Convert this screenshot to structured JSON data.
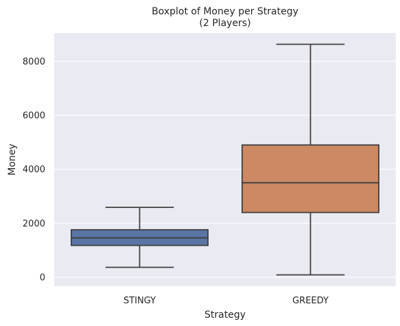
{
  "chart_data": {
    "type": "box",
    "title": [
      "Boxplot of Money per Strategy",
      "(2 Players)"
    ],
    "xlabel": "Strategy",
    "ylabel": "Money",
    "ylim": [
      -330,
      9050
    ],
    "yticks": [
      0,
      2000,
      4000,
      6000,
      8000
    ],
    "ytick_labels": [
      "0",
      "2000",
      "4000",
      "6000",
      "8000"
    ],
    "grid": true,
    "categories": [
      "STINGY",
      "GREEDY"
    ],
    "boxes": [
      {
        "category": "STINGY",
        "whisker_low": 370,
        "q1": 1180,
        "median": 1460,
        "q3": 1760,
        "whisker_high": 2590,
        "color": "#5975a4"
      },
      {
        "category": "GREEDY",
        "whisker_low": 90,
        "q1": 2400,
        "median": 3500,
        "q3": 4900,
        "whisker_high": 8630,
        "color": "#cc8963"
      }
    ],
    "colors": {
      "background": "#eaeaf2",
      "grid": "#ffffff",
      "lines": "#3f3f3f",
      "text": "#262626"
    }
  }
}
